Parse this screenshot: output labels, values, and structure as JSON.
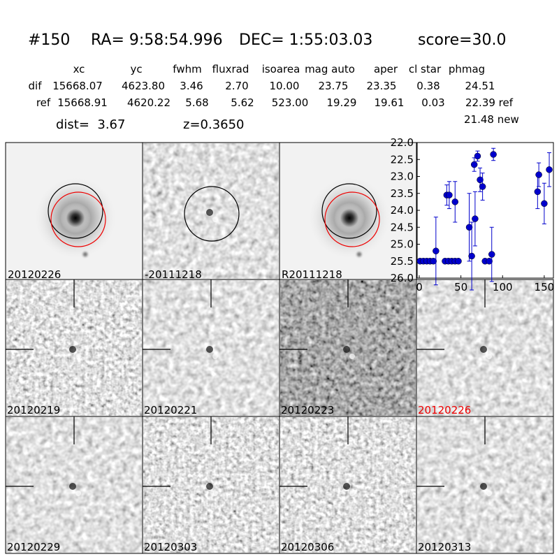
{
  "header": {
    "id": "#150",
    "ra": "RA= 9:58:54.996",
    "dec": "DEC= 1:55:03.03",
    "score": "score=30.0"
  },
  "table": {
    "columns": [
      "xc",
      "yc",
      "fwhm",
      "fluxrad",
      "isoarea",
      "mag auto",
      "aper",
      "cl star",
      "phmag"
    ],
    "rows": [
      [
        "dif",
        "15668.07",
        "4623.80",
        "3.46",
        "2.70",
        "10.00",
        "23.75",
        "23.35",
        "0.38",
        "24.51"
      ],
      [
        "ref",
        "15668.91",
        "4620.22",
        "5.68",
        "5.62",
        "523.00",
        "19.29",
        "19.61",
        "0.03",
        "22.39 ref"
      ]
    ]
  },
  "dist": "dist=  3.67",
  "z": "z=0.3650",
  "new_mag": "21.48 new",
  "top_panels": [
    "20120226",
    "-20111218",
    "R20111218"
  ],
  "epoch_panels": [
    "20120219",
    "20120221",
    "20120223",
    "20120226",
    "20120229",
    "20120303",
    "20120306",
    "20120313"
  ],
  "chart_data": {
    "type": "scatter",
    "color": "#0000cc",
    "x": [
      1,
      5,
      9,
      13,
      17,
      20,
      33,
      36,
      31,
      35,
      39,
      43,
      47,
      43,
      60,
      63,
      66,
      67,
      70,
      73,
      76,
      79,
      84,
      87,
      89,
      142,
      143.5,
      150,
      156
    ],
    "values": [
      25.5,
      25.5,
      25.5,
      25.5,
      25.5,
      25.2,
      23.55,
      23.55,
      25.5,
      25.5,
      25.5,
      25.5,
      25.5,
      23.75,
      24.5,
      25.35,
      22.65,
      24.25,
      22.4,
      23.1,
      23.3,
      25.5,
      25.5,
      25.3,
      22.35,
      23.45,
      22.95,
      23.8,
      22.8
    ],
    "errors": [
      null,
      null,
      null,
      null,
      null,
      1.0,
      0.3,
      0.4,
      null,
      null,
      null,
      null,
      null,
      0.6,
      1.0,
      1.0,
      0.2,
      0.8,
      0.15,
      0.35,
      0.4,
      null,
      null,
      0.8,
      0.18,
      0.5,
      0.35,
      0.6,
      0.5
    ],
    "xlim": [
      -2.5,
      161
    ],
    "ylim": [
      26,
      22
    ],
    "xticks": [
      0,
      50,
      100,
      150
    ],
    "yticks": [
      {
        "value": 22,
        "label": "22.0"
      },
      {
        "value": 22.5,
        "label": "22.5"
      },
      {
        "value": 23,
        "label": "23.0"
      },
      {
        "value": 23.5,
        "label": "23.5"
      },
      {
        "value": 24,
        "label": "24.0"
      },
      {
        "value": 24.5,
        "label": "24.5"
      },
      {
        "value": 25,
        "label": "25.0"
      },
      {
        "value": 25.5,
        "label": "25.5"
      },
      {
        "value": 26,
        "label": "26.0"
      }
    ]
  }
}
